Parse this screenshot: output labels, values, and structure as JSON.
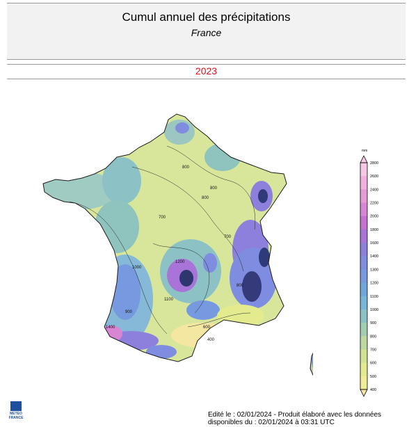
{
  "header": {
    "title": "Cumul annuel des précipitations",
    "subtitle": "France"
  },
  "year": "2023",
  "map": {
    "contour_labels": [
      "800",
      "800",
      "700",
      "700",
      "1200",
      "1000",
      "1100",
      "800",
      "600",
      "900",
      "400",
      "1400",
      "800"
    ]
  },
  "legend": {
    "unit": "mm",
    "ticks": [
      "2800",
      "2600",
      "2400",
      "2200",
      "2000",
      "1800",
      "1600",
      "1400",
      "1300",
      "1200",
      "1100",
      "1000",
      "900",
      "800",
      "700",
      "600",
      "500",
      "400"
    ],
    "colors": [
      "#f7c7e6",
      "#f1b0de",
      "#e79ad8",
      "#d885d4",
      "#c372d2",
      "#a874d8",
      "#8d80dc",
      "#7f8de0",
      "#7799df",
      "#70a6dc",
      "#78b5d6",
      "#8cc2c5",
      "#a3cdb0",
      "#bdd8a0",
      "#d2e392",
      "#e4ea8e",
      "#f0ec98",
      "#f4e7a2"
    ]
  },
  "logo": {
    "line1": "METEO",
    "line2": "FRANCE"
  },
  "footer": {
    "line1": "Edité le : 02/01/2024 - Produit élaboré avec les données",
    "line2": "disponibles du : 02/01/2024 à 03:31 UTC"
  }
}
